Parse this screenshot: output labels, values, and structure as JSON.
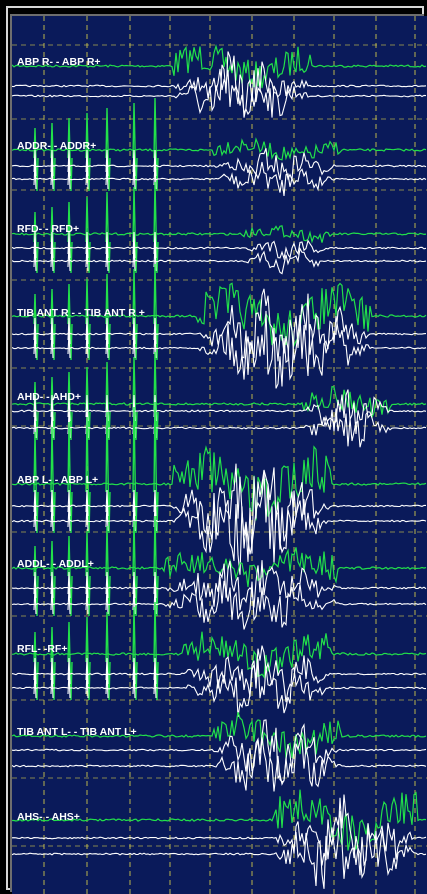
{
  "window": {
    "frame_color": "#d8d8d8",
    "plot_background": "#0a1a5a",
    "grid_color": "#d8d04a"
  },
  "channels": [
    {
      "label": "ABP R- - ABP R+"
    },
    {
      "label": "ADDR- - ADDR+"
    },
    {
      "label": "RFD- - RFD+"
    },
    {
      "label": "TIB ANT R - - TIB ANT R +"
    },
    {
      "label": "AHD- - AHD+"
    },
    {
      "label": "ABP L- - ABP L+"
    },
    {
      "label": "ADDL- - ADDL+"
    },
    {
      "label": "RFL- -RF+"
    },
    {
      "label": "TIB ANT L- - TIB ANT L+"
    },
    {
      "label": "AHS- - AHS+"
    }
  ],
  "trace_colors": {
    "green": "#22e04a",
    "white": "#ffffff"
  }
}
